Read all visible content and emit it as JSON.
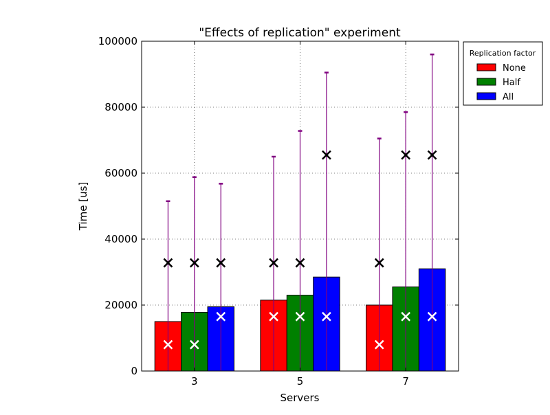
{
  "chart_data": {
    "type": "bar",
    "title": "\"Effects of replication\" experiment",
    "xlabel": "Servers",
    "ylabel": "Time [us]",
    "ylim": [
      0,
      100000
    ],
    "yticks": [
      0,
      20000,
      40000,
      60000,
      80000,
      100000
    ],
    "ytick_labels": [
      "0",
      "20000",
      "40000",
      "60000",
      "80000",
      "100000"
    ],
    "categories": [
      "3",
      "5",
      "7"
    ],
    "grid": true,
    "legend": {
      "title": "Replication factor",
      "placement": "outside-top-right"
    },
    "series": [
      {
        "name": "None",
        "color": "#ff0000",
        "values": [
          15000,
          21500,
          20000
        ],
        "error_upper": [
          51500,
          65000,
          70500
        ],
        "marker_high": [
          32800,
          32800,
          32800
        ],
        "marker_low": [
          8000,
          16500,
          8000
        ]
      },
      {
        "name": "Half",
        "color": "#008000",
        "values": [
          17800,
          23000,
          25500
        ],
        "error_upper": [
          58800,
          72800,
          78500
        ],
        "marker_high": [
          32800,
          32800,
          65500
        ],
        "marker_low": [
          8000,
          16500,
          16500
        ]
      },
      {
        "name": "All",
        "color": "#0000ff",
        "values": [
          19500,
          28500,
          31000
        ],
        "error_upper": [
          56800,
          90500,
          96000
        ],
        "marker_high": [
          32800,
          65500,
          65500
        ],
        "marker_low": [
          16500,
          16500,
          16500
        ]
      }
    ],
    "errorbar_color": "#800080",
    "marker_high_color": "#000000",
    "marker_low_color": "#ffffff"
  }
}
